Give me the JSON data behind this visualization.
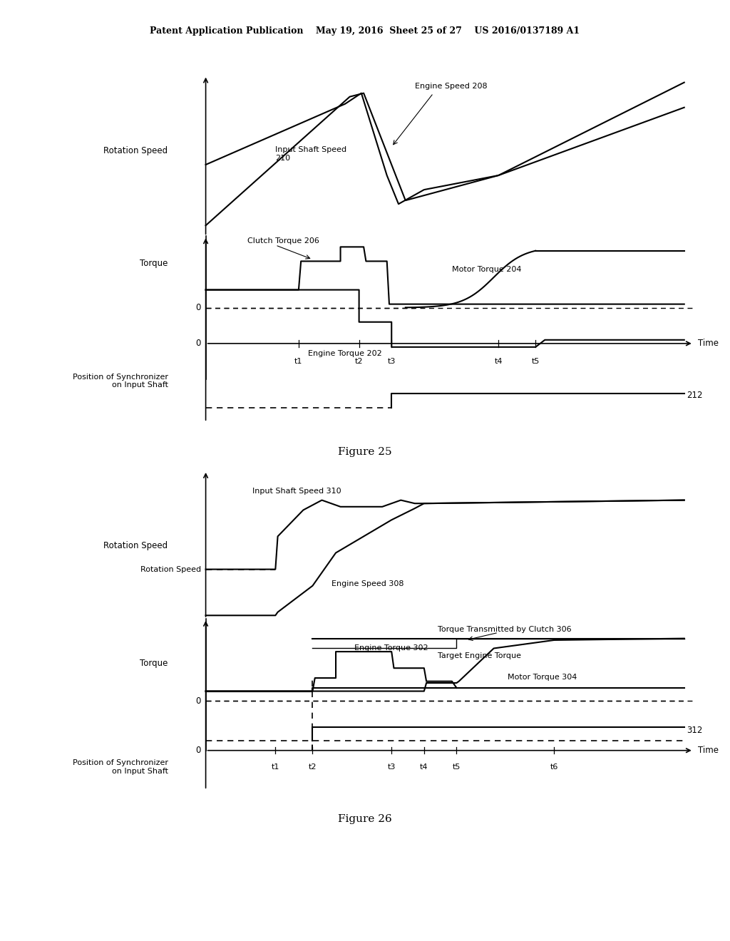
{
  "header": "Patent Application Publication    May 19, 2016  Sheet 25 of 27    US 2016/0137189 A1",
  "fig1_title": "Figure 25",
  "fig2_title": "Figure 26",
  "bg_color": "#ffffff",
  "lc": "#000000",
  "fig1": {
    "ylabel_speed": "Rotation Speed",
    "ylabel_torque": "Torque",
    "ylabel_pos": "Position of Synchronizer\non Input Shaft",
    "time_ticks": [
      "t1",
      "t2",
      "t3",
      "t4",
      "t5"
    ],
    "t1": 2.5,
    "t2": 3.8,
    "t3": 4.5,
    "t4": 6.8,
    "t5": 7.6,
    "label_212": "212",
    "ann_engine_speed": "Engine Speed 208",
    "ann_input_shaft": "Input Shaft Speed\n210",
    "ann_clutch": "Clutch Torque 206",
    "ann_motor": "Motor Torque 204",
    "ann_engine_torque": "Engine Torque 202"
  },
  "fig2": {
    "ylabel_speed": "Rotation Speed",
    "ylabel_torque": "Torque",
    "ylabel_pos": "Position of Synchronizer\non Input Shaft",
    "time_ticks": [
      "t1",
      "t2",
      "t3",
      "t4",
      "t5",
      "t6"
    ],
    "t1": 2.0,
    "t2": 2.8,
    "t3": 4.5,
    "t4": 5.2,
    "t5": 5.9,
    "t6": 8.0,
    "label_312": "312",
    "ann_input_shaft": "Input Shaft Speed 310",
    "ann_engine_speed": "Engine Speed 308",
    "ann_engine_torque": "Engine Torque 302",
    "ann_clutch": "Torque Transmitted by Clutch 306",
    "ann_target": "Target Engine Torque",
    "ann_motor": "Motor Torque 304"
  }
}
